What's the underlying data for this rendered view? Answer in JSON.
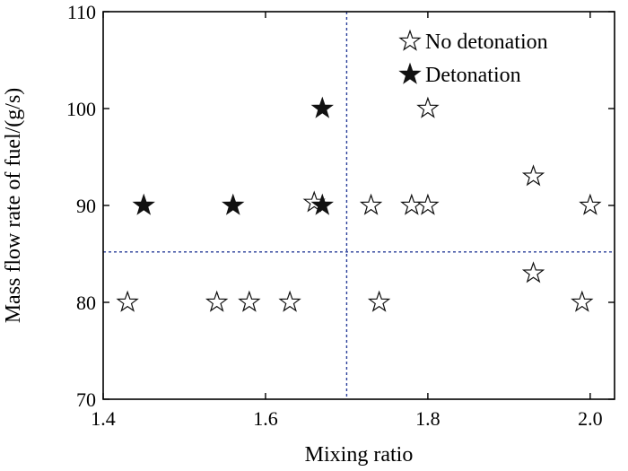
{
  "chart_data": {
    "type": "scatter",
    "title": "",
    "xlabel": "Mixing ratio",
    "ylabel": "Mass flow rate of fuel/(g/s)",
    "xlim": [
      1.4,
      2.03
    ],
    "ylim": [
      70,
      110
    ],
    "x_ticks": [
      1.4,
      1.6,
      1.8,
      2.0
    ],
    "x_tick_labels": [
      "1.4",
      "1.6",
      "1.8",
      "2.0"
    ],
    "y_ticks": [
      70,
      80,
      90,
      100,
      110
    ],
    "y_tick_labels": [
      "70",
      "80",
      "90",
      "100",
      "110"
    ],
    "grid": false,
    "legend_position": "top-right",
    "reference_lines": {
      "x": 1.7,
      "y": 85.2,
      "style": "dotted",
      "color": "#2a3f9a"
    },
    "series": [
      {
        "name": "No detonation",
        "marker": "hollow-star",
        "points": [
          {
            "x": 1.43,
            "y": 80
          },
          {
            "x": 1.54,
            "y": 80
          },
          {
            "x": 1.58,
            "y": 80
          },
          {
            "x": 1.63,
            "y": 80
          },
          {
            "x": 1.74,
            "y": 80
          },
          {
            "x": 1.93,
            "y": 83
          },
          {
            "x": 1.99,
            "y": 80
          },
          {
            "x": 1.66,
            "y": 90.3
          },
          {
            "x": 1.73,
            "y": 90
          },
          {
            "x": 1.78,
            "y": 90
          },
          {
            "x": 1.8,
            "y": 90
          },
          {
            "x": 1.93,
            "y": 93
          },
          {
            "x": 2.0,
            "y": 90
          },
          {
            "x": 1.8,
            "y": 100
          }
        ]
      },
      {
        "name": "Detonation",
        "marker": "filled-star",
        "points": [
          {
            "x": 1.45,
            "y": 90
          },
          {
            "x": 1.56,
            "y": 90
          },
          {
            "x": 1.67,
            "y": 90
          },
          {
            "x": 1.67,
            "y": 100
          }
        ]
      }
    ]
  }
}
